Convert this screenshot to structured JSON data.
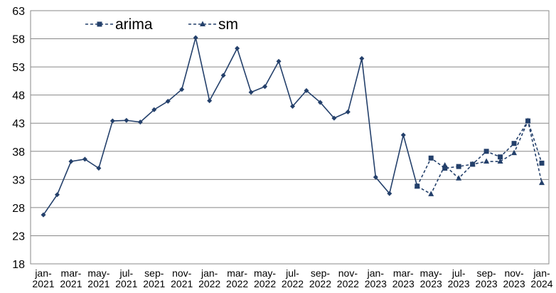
{
  "chart_data": {
    "type": "line",
    "categories": [
      "jan-2021",
      null,
      "mar-2021",
      null,
      "may-2021",
      null,
      "jul-2021",
      null,
      "sep-2021",
      null,
      "nov-2021",
      null,
      "jan-2022",
      null,
      "mar-2022",
      null,
      "may-2022",
      null,
      "jul-2022",
      null,
      "sep-2022",
      null,
      "nov-2022",
      null,
      "jan-2023",
      null,
      "mar-2023",
      null,
      "may-2023",
      null,
      "jul-2023",
      null,
      "sep-2023",
      null,
      "nov-2023",
      null,
      "jan-2024"
    ],
    "series": [
      {
        "color": "#24406b",
        "marker": "diamond",
        "dashed": false,
        "values": [
          26.7,
          30.3,
          36.2,
          36.6,
          35.0,
          43.4,
          43.5,
          43.2,
          45.4,
          46.9,
          49.0,
          58.2,
          47.0,
          51.5,
          56.3,
          48.5,
          49.5,
          54.0,
          46.0,
          48.8,
          46.7,
          43.9,
          45.0,
          54.5,
          33.4,
          30.5,
          40.9,
          31.8,
          null,
          null,
          null,
          null,
          null,
          null,
          null,
          null,
          null
        ]
      },
      {
        "name": "arima",
        "color": "#24406b",
        "marker": "square",
        "dashed": true,
        "values": [
          null,
          null,
          null,
          null,
          null,
          null,
          null,
          null,
          null,
          null,
          null,
          null,
          null,
          null,
          null,
          null,
          null,
          null,
          null,
          null,
          null,
          null,
          null,
          null,
          null,
          null,
          null,
          31.8,
          36.8,
          35.0,
          35.3,
          35.7,
          38.0,
          37.0,
          39.4,
          43.4,
          35.9
        ]
      },
      {
        "name": "sm",
        "color": "#24406b",
        "marker": "triangle",
        "dashed": true,
        "values": [
          null,
          null,
          null,
          null,
          null,
          null,
          null,
          null,
          null,
          null,
          null,
          null,
          null,
          null,
          null,
          null,
          null,
          null,
          null,
          null,
          null,
          null,
          null,
          null,
          null,
          null,
          null,
          31.8,
          30.4,
          35.5,
          33.2,
          35.7,
          36.2,
          36.2,
          37.7,
          43.4,
          32.4
        ]
      }
    ],
    "ylim": [
      18,
      63
    ],
    "yticks": [
      18,
      23,
      28,
      33,
      38,
      43,
      48,
      53,
      58,
      63
    ],
    "grid": true,
    "legend": "top-left"
  }
}
